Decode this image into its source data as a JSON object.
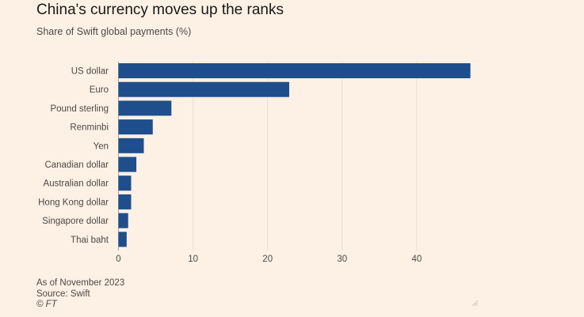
{
  "chart_data": {
    "type": "bar",
    "orientation": "horizontal",
    "title": "China's currency moves up the ranks",
    "subtitle": "Share of Swift global payments (%)",
    "categories": [
      "US dollar",
      "Euro",
      "Pound sterling",
      "Renminbi",
      "Yen",
      "Canadian dollar",
      "Australian dollar",
      "Hong Kong dollar",
      "Singapore dollar",
      "Thai baht"
    ],
    "values": [
      47.2,
      22.9,
      7.1,
      4.6,
      3.4,
      2.4,
      1.7,
      1.7,
      1.3,
      1.1
    ],
    "xlim": [
      0,
      50
    ],
    "xticks": [
      "0",
      "10",
      "20",
      "30",
      "40"
    ],
    "xtick_values": [
      0,
      10,
      20,
      30,
      40
    ],
    "grid": true,
    "bar_color": "#1f4e8c"
  },
  "footer": {
    "note": "As of November 2023",
    "source": "Source: Swift",
    "copyright": "© FT"
  },
  "colors": {
    "background": "#fdf1e5",
    "gridline": "#e9dfd4",
    "bar": "#1f4e8c"
  },
  "icons": {
    "resize": "resize-grip-icon"
  }
}
